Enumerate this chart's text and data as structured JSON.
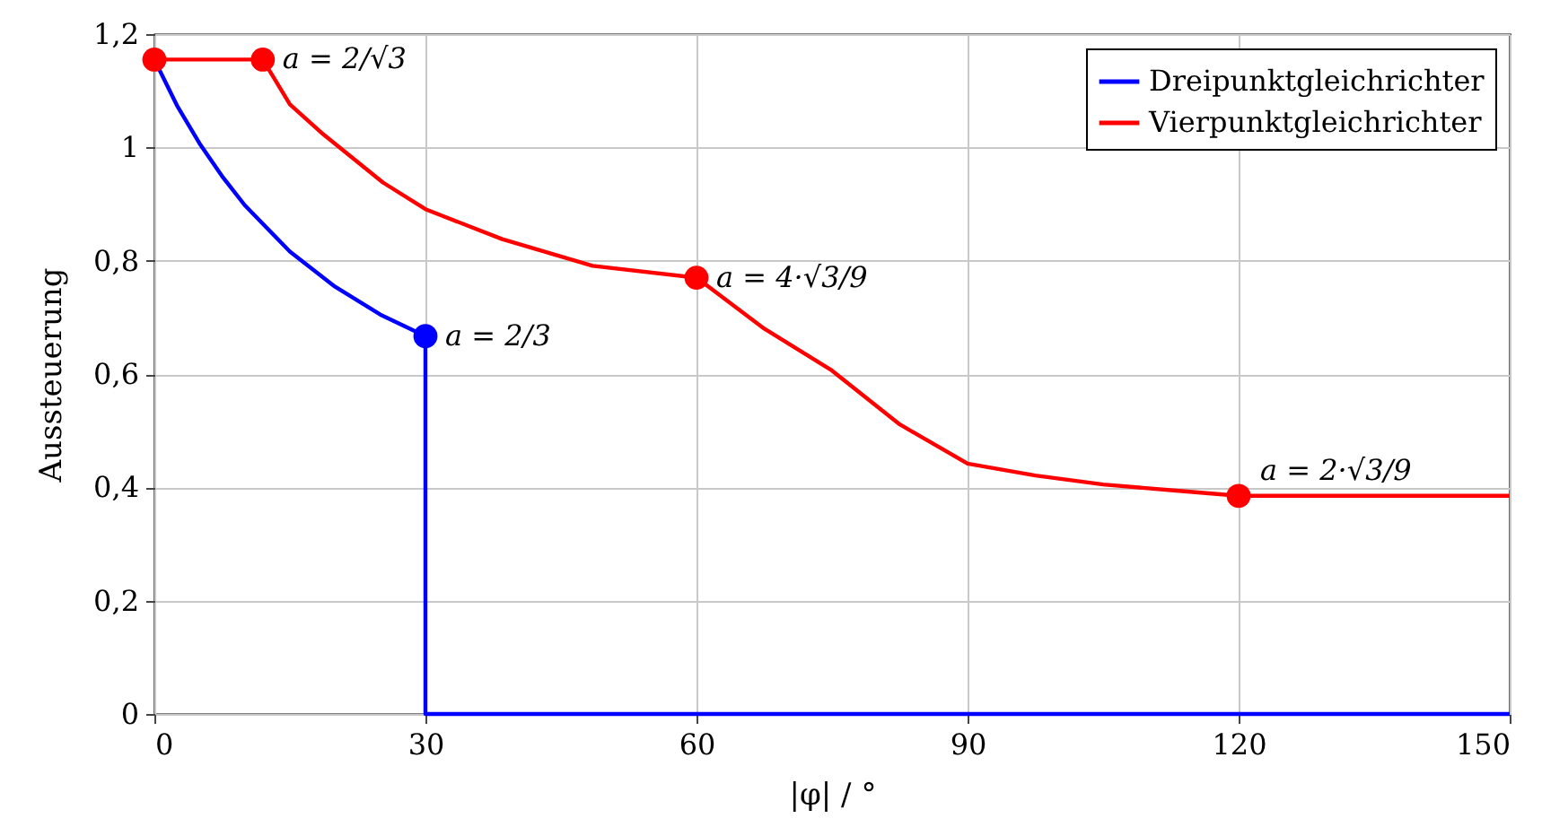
{
  "chart_data": {
    "type": "line",
    "xlabel": "|φ| / °",
    "ylabel": "Aussteuerung",
    "xlim": [
      0,
      150
    ],
    "xticks": [
      0,
      30,
      60,
      90,
      120,
      150
    ],
    "ylim": [
      0,
      1.2
    ],
    "yticks": [
      0,
      {
        "value": 0.2,
        "label": "0,2"
      },
      {
        "value": 0.4,
        "label": "0,4"
      },
      {
        "value": 0.6,
        "label": "0,6"
      },
      {
        "value": 0.8,
        "label": "0,8"
      },
      1,
      {
        "value": 1.2,
        "label": "1,2"
      }
    ],
    "grid": true,
    "legend": "top right",
    "line_style": "solid",
    "series": [
      {
        "name": "Dreipunktgleichrichter",
        "color": "#0000ff",
        "x": [
          0,
          2.5,
          5,
          7.5,
          10,
          15,
          20,
          25,
          30,
          30,
          150
        ],
        "values": [
          1.155,
          1.074,
          1.007,
          0.949,
          0.898,
          0.816,
          0.754,
          0.705,
          0.667,
          0,
          0
        ]
      },
      {
        "name": "Vierpunktgleichrichter",
        "color": "#ff0000",
        "x": [
          0,
          12,
          15,
          18.7,
          25.3,
          30,
          38.5,
          48.5,
          60,
          67.5,
          75,
          82.5,
          90,
          97.5,
          105,
          112.5,
          120,
          150
        ],
        "values": [
          1.155,
          1.155,
          1.076,
          1.023,
          0.938,
          0.891,
          0.838,
          0.791,
          0.77,
          0.68,
          0.606,
          0.511,
          0.442,
          0.421,
          0.405,
          0.395,
          0.385,
          0.385
        ]
      },
      {
        "type": "scatter",
        "marker": "circle",
        "color": "#0000ff",
        "x": [
          30
        ],
        "values": [
          0.667
        ]
      },
      {
        "type": "scatter",
        "marker": "circle",
        "color": "#ff0000",
        "x": [
          0,
          12,
          60,
          120
        ],
        "values": [
          1.155,
          1.155,
          0.77,
          0.385
        ]
      }
    ],
    "annotations": [
      {
        "text": "a = 2/√3",
        "x": 12,
        "y": 1.155
      },
      {
        "text": "a = 2/3",
        "x": 30,
        "y": 0.667
      },
      {
        "text": "a = 4·√3/9",
        "x": 60,
        "y": 0.77
      },
      {
        "text": "a = 2·√3/9",
        "x": 120,
        "y": 0.385
      }
    ]
  }
}
